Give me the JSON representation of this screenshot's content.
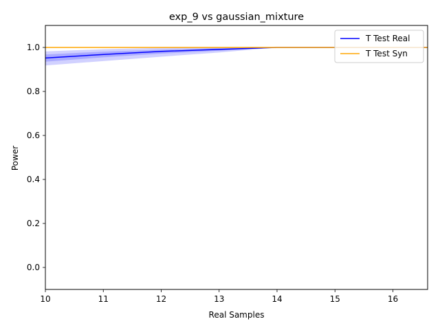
{
  "chart_data": {
    "type": "line",
    "title": "exp_9 vs gaussian_mixture",
    "xlabel": "Real Samples",
    "ylabel": "Power",
    "xlim": [
      10,
      16.6
    ],
    "ylim": [
      -0.1,
      1.1
    ],
    "xticks": [
      10,
      11,
      12,
      13,
      14,
      15,
      16
    ],
    "yticks": [
      0.0,
      0.2,
      0.4,
      0.6,
      0.8,
      1.0
    ],
    "ytick_labels": [
      "0.0",
      "0.2",
      "0.4",
      "0.6",
      "0.8",
      "1.0"
    ],
    "legend_position": "top-right",
    "grid": false,
    "series": [
      {
        "name": "T Test Real",
        "color": "#0000ff",
        "band_color": "#0000ff",
        "x": [
          10,
          11,
          12,
          13,
          14,
          15,
          16,
          16.6
        ],
        "values": [
          0.952,
          0.968,
          0.982,
          0.991,
          1.0,
          1.0,
          1.0,
          1.0
        ],
        "band_inner": [
          [
            0.935,
            0.968
          ],
          [
            0.955,
            0.981
          ],
          [
            0.972,
            0.99
          ],
          [
            0.985,
            0.997
          ],
          [
            1.0,
            1.0
          ],
          [
            1.0,
            1.0
          ],
          [
            1.0,
            1.0
          ],
          [
            1.0,
            1.0
          ]
        ],
        "band_outer": [
          [
            0.918,
            0.982
          ],
          [
            0.938,
            0.992
          ],
          [
            0.958,
            0.998
          ],
          [
            0.977,
            1.0
          ],
          [
            1.0,
            1.0
          ],
          [
            1.0,
            1.0
          ],
          [
            1.0,
            1.0
          ],
          [
            1.0,
            1.0
          ]
        ]
      },
      {
        "name": "T Test Syn",
        "color": "#ffa500",
        "x": [
          10,
          16.6
        ],
        "values": [
          1.0,
          1.0
        ]
      }
    ]
  }
}
